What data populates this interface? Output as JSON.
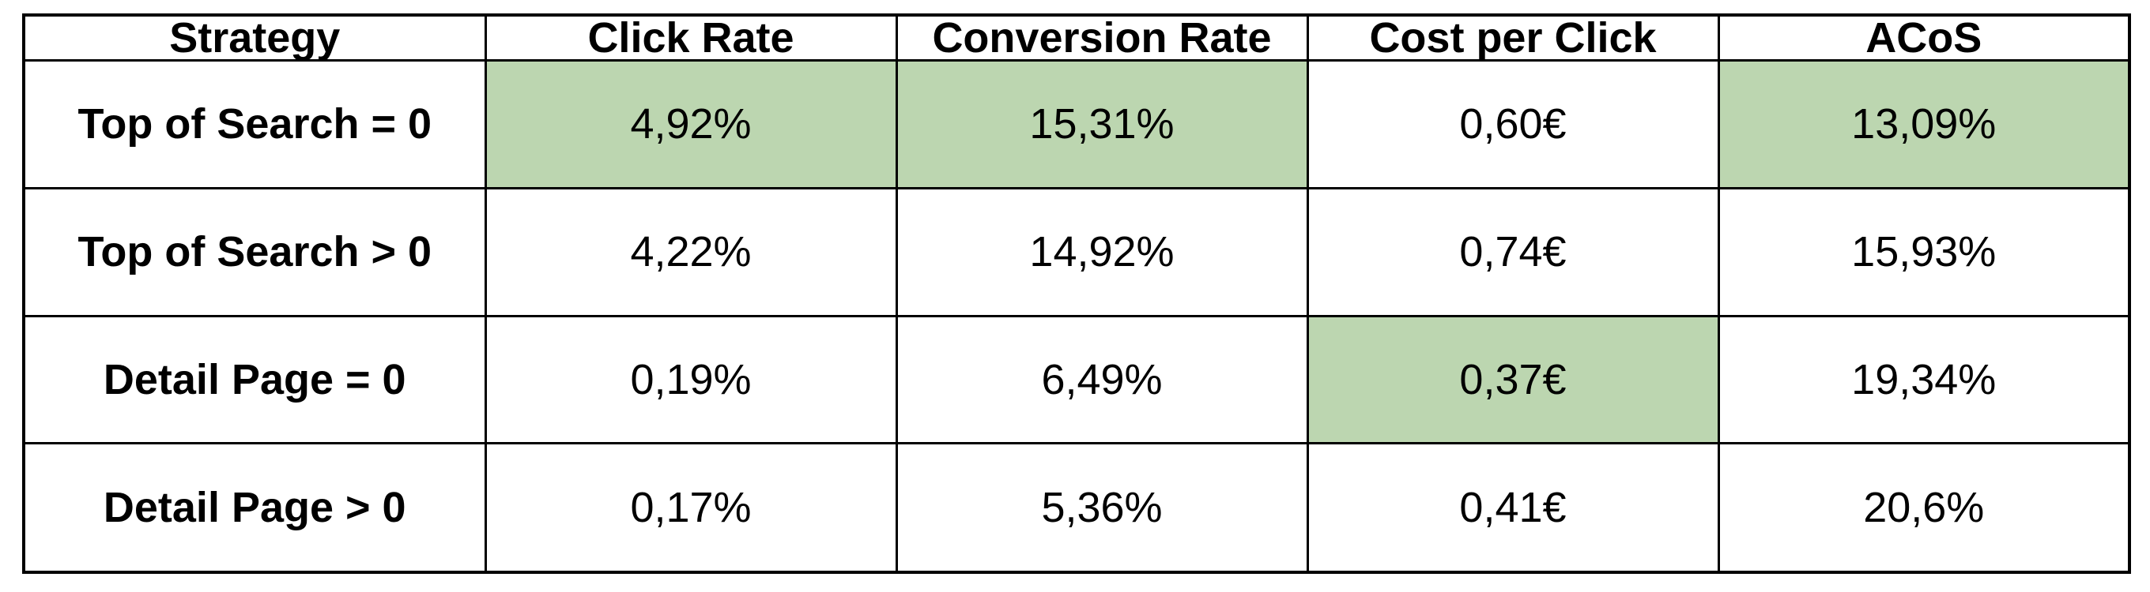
{
  "chart_data": {
    "type": "table",
    "columns": [
      "Strategy",
      "Click Rate",
      "Conversion Rate",
      "Cost per Click",
      "ACoS"
    ],
    "rows": [
      {
        "cells": [
          "Top of Search = 0",
          "4,92%",
          "15,31%",
          "0,60€",
          "13,09%"
        ],
        "highlight": [
          false,
          true,
          true,
          false,
          true
        ]
      },
      {
        "cells": [
          "Top of Search > 0",
          "4,22%",
          "14,92%",
          "0,74€",
          "15,93%"
        ],
        "highlight": [
          false,
          false,
          false,
          false,
          false
        ]
      },
      {
        "cells": [
          "Detail Page = 0",
          "0,19%",
          "6,49%",
          "0,37€",
          "19,34%"
        ],
        "highlight": [
          false,
          false,
          false,
          true,
          false
        ]
      },
      {
        "cells": [
          "Detail Page > 0",
          "0,17%",
          "5,36%",
          "0,41€",
          "20,6%"
        ],
        "highlight": [
          false,
          false,
          false,
          false,
          false
        ]
      }
    ],
    "highlight_color": "#bcd6b0"
  }
}
